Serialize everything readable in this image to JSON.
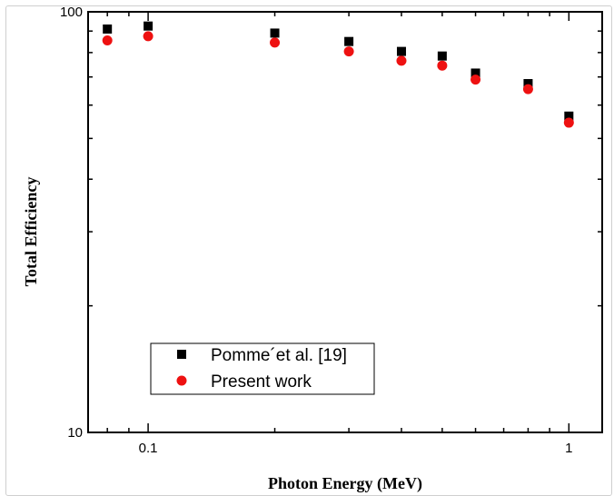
{
  "chart_data": {
    "type": "scatter",
    "xscale": "log",
    "yscale": "log",
    "xlim": [
      0.072,
      1.2
    ],
    "ylim": [
      10,
      100
    ],
    "xlabel": "Photon Energy (MeV)",
    "ylabel": "Total Efficiency",
    "xticks": [
      "0.1",
      "1"
    ],
    "yticks": [
      "10",
      "100"
    ],
    "legend_position": "bottom-left",
    "grid": false,
    "series": [
      {
        "name": "Pomme´et al. [19]",
        "marker": "square",
        "color": "#000000",
        "x": [
          0.08,
          0.1,
          0.2,
          0.3,
          0.4,
          0.5,
          0.6,
          0.8,
          1.0
        ],
        "y": [
          91,
          92.5,
          89,
          85,
          80.5,
          78.5,
          71.5,
          67.5,
          56.5
        ]
      },
      {
        "name": "Present work",
        "marker": "circle",
        "color": "#ee1111",
        "x": [
          0.08,
          0.1,
          0.2,
          0.3,
          0.4,
          0.5,
          0.6,
          0.8,
          1.0
        ],
        "y": [
          85.5,
          87.5,
          84.5,
          80.5,
          76.5,
          74.5,
          69,
          65.5,
          54.5
        ]
      }
    ]
  }
}
